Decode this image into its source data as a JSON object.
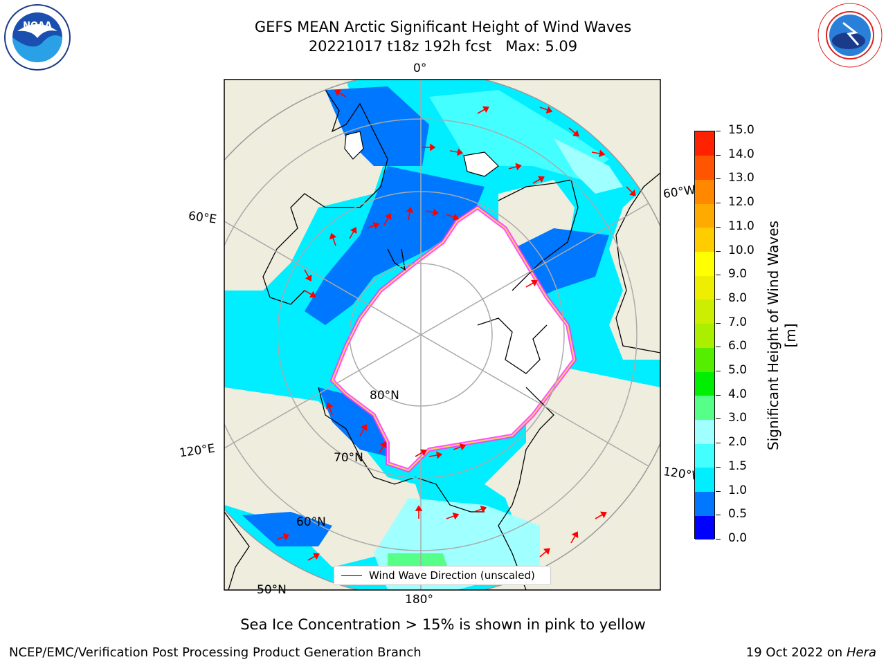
{
  "title": {
    "line1": "GEFS MEAN Arctic Significant Height of Wind Waves",
    "line2": "20221017 t18z 192h fcst   Max: 5.09"
  },
  "logos": {
    "left": {
      "name": "NOAA",
      "ring_text": "NATIONAL OCEANIC AND ATMOSPHERIC ADMINISTRATION · U.S. DEPARTMENT OF COMMERCE"
    },
    "right": {
      "ring_text": "NATIONAL WEATHER SERVICE"
    }
  },
  "map": {
    "projection": "north-polar-stereographic",
    "longitude_labels": [
      "0°",
      "60°W",
      "120°W",
      "180°",
      "120°E",
      "60°E"
    ],
    "latitude_labels": [
      "80°N",
      "70°N",
      "60°N",
      "50°N"
    ],
    "land_color": "#efedde",
    "ice_color": "#ffffff",
    "sea_ice_edge_colors": [
      "#ff33ff",
      "#ff99cc",
      "#ffcc66"
    ],
    "vector_color": "#ff0000"
  },
  "legend": {
    "label": "Wind Wave Direction (unscaled)"
  },
  "colorbar": {
    "title": "Significant Height of Wind Waves [m]",
    "ticks": [
      "0.0",
      "0.5",
      "1.0",
      "1.5",
      "2.0",
      "3.0",
      "4.0",
      "5.0",
      "6.0",
      "7.0",
      "8.0",
      "9.0",
      "10.0",
      "11.0",
      "12.0",
      "13.0",
      "14.0",
      "15.0"
    ],
    "colors": [
      "#0000ff",
      "#0077ff",
      "#00eeff",
      "#44ffff",
      "#a0ffff",
      "#55ff88",
      "#00ee00",
      "#55ee00",
      "#aaee00",
      "#ccee00",
      "#eeee00",
      "#ffff00",
      "#ffcc00",
      "#ffaa00",
      "#ff8800",
      "#ff5500",
      "#ff2200"
    ]
  },
  "footnote": "Sea Ice Concentration > 15% is shown in pink to yellow",
  "credit": "NCEP/EMC/Verification Post Processing Product Generation Branch",
  "date": {
    "text": "19 Oct 2022 on ",
    "host": "Hera"
  }
}
